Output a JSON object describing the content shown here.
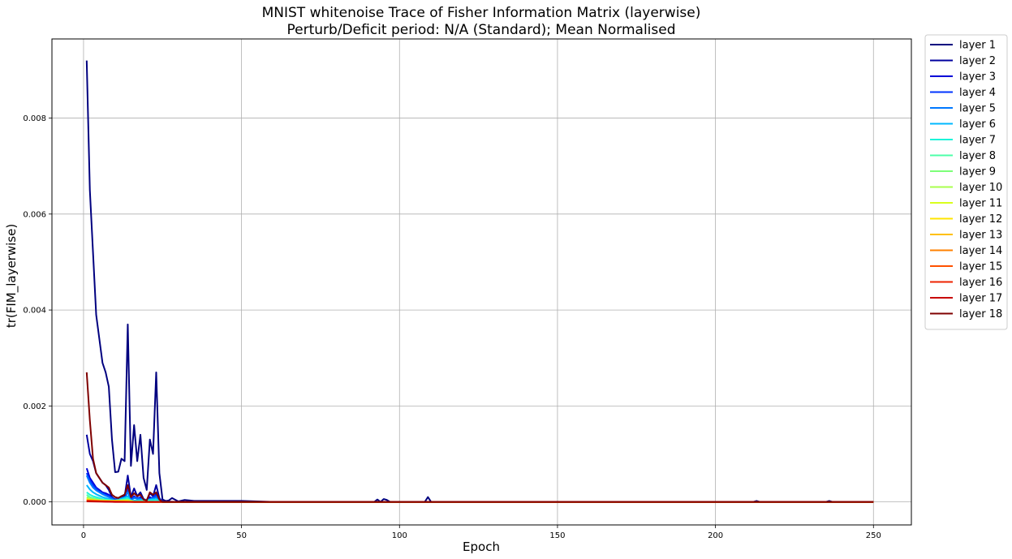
{
  "chart_data": {
    "type": "line",
    "title": "MNIST whitenoise Trace of Fisher Information Matrix (layerwise)",
    "subtitle": "Perturb/Deficit period: N/A (Standard); Mean Normalised",
    "xlabel": "Epoch",
    "ylabel": "tr(FIM_layerwise)",
    "xlim": [
      -10,
      262
    ],
    "ylim": [
      -0.00048,
      0.00965
    ],
    "xticks": [
      0,
      50,
      100,
      150,
      200,
      250
    ],
    "xtick_labels": [
      "0",
      "50",
      "100",
      "150",
      "200",
      "250"
    ],
    "yticks": [
      0,
      0.002,
      0.004,
      0.006,
      0.008
    ],
    "ytick_labels": [
      "0.000",
      "0.002",
      "0.004",
      "0.006",
      "0.008"
    ],
    "grid": true,
    "legend_position": "outside-right",
    "series": [
      {
        "name": "layer 1",
        "color": "#00007f",
        "points": [
          [
            1,
            0.0092
          ],
          [
            2,
            0.0065
          ],
          [
            3,
            0.0052
          ],
          [
            4,
            0.0039
          ],
          [
            5,
            0.0034
          ],
          [
            6,
            0.0029
          ],
          [
            7,
            0.0027
          ],
          [
            8,
            0.0024
          ],
          [
            9,
            0.0013
          ],
          [
            10,
            0.00062
          ],
          [
            11,
            0.00063
          ],
          [
            12,
            0.0009
          ],
          [
            13,
            0.00085
          ],
          [
            14,
            0.0037
          ],
          [
            15,
            0.00075
          ],
          [
            16,
            0.0016
          ],
          [
            17,
            0.00085
          ],
          [
            18,
            0.0014
          ],
          [
            19,
            0.0005
          ],
          [
            20,
            0.00025
          ],
          [
            21,
            0.0013
          ],
          [
            22,
            0.001
          ],
          [
            23,
            0.0027
          ],
          [
            24,
            0.0006
          ],
          [
            25,
            5e-05
          ],
          [
            26,
            2e-05
          ],
          [
            27,
            3e-05
          ],
          [
            28,
            8e-05
          ],
          [
            30,
            1e-05
          ],
          [
            32,
            4e-05
          ],
          [
            35,
            2e-05
          ],
          [
            42,
            2e-05
          ],
          [
            50,
            2e-05
          ],
          [
            60,
            0.0
          ],
          [
            92,
            0.0
          ],
          [
            93,
            5e-05
          ],
          [
            94,
            0.0
          ],
          [
            95,
            6e-05
          ],
          [
            96,
            4e-05
          ],
          [
            97,
            0.0
          ],
          [
            108,
            0.0
          ],
          [
            109,
            0.0001
          ],
          [
            110,
            0.0
          ],
          [
            150,
            0.0
          ],
          [
            212,
            0.0
          ],
          [
            213,
            2e-05
          ],
          [
            214,
            0.0
          ],
          [
            235,
            0.0
          ],
          [
            236,
            2e-05
          ],
          [
            237,
            0.0
          ],
          [
            250,
            0.0
          ]
        ]
      },
      {
        "name": "layer 2",
        "color": "#00009f",
        "points": [
          [
            1,
            0.0014
          ],
          [
            2,
            0.001
          ],
          [
            3,
            0.00085
          ],
          [
            4,
            0.0006
          ],
          [
            5,
            0.0005
          ],
          [
            6,
            0.0004
          ],
          [
            7,
            0.00035
          ],
          [
            8,
            0.00025
          ],
          [
            9,
            0.0001
          ],
          [
            10,
            5e-05
          ],
          [
            11,
            8e-05
          ],
          [
            12,
            0.0001
          ],
          [
            13,
            0.00011
          ],
          [
            14,
            0.00055
          ],
          [
            15,
            0.0001
          ],
          [
            16,
            0.00028
          ],
          [
            17,
            0.00012
          ],
          [
            18,
            0.0002
          ],
          [
            19,
            6e-05
          ],
          [
            20,
            3e-05
          ],
          [
            21,
            0.00018
          ],
          [
            22,
            0.00012
          ],
          [
            23,
            0.00035
          ],
          [
            24,
            8e-05
          ],
          [
            25,
            1e-05
          ],
          [
            30,
            0.0
          ],
          [
            250,
            0.0
          ]
        ]
      },
      {
        "name": "layer 3",
        "color": "#0000d7",
        "points": [
          [
            1,
            0.0007
          ],
          [
            2,
            0.0005
          ],
          [
            3,
            0.0004
          ],
          [
            4,
            0.0003
          ],
          [
            5,
            0.00025
          ],
          [
            6,
            0.0002
          ],
          [
            7,
            0.00018
          ],
          [
            8,
            0.00015
          ],
          [
            9,
            8e-05
          ],
          [
            10,
            4e-05
          ],
          [
            12,
            6e-05
          ],
          [
            13,
            6e-05
          ],
          [
            14,
            0.0003
          ],
          [
            15,
            5e-05
          ],
          [
            16,
            0.00012
          ],
          [
            17,
            6e-05
          ],
          [
            18,
            0.0001
          ],
          [
            20,
            2e-05
          ],
          [
            21,
            0.0001
          ],
          [
            22,
            6e-05
          ],
          [
            23,
            0.00018
          ],
          [
            24,
            4e-05
          ],
          [
            25,
            0.0
          ],
          [
            250,
            0.0
          ]
        ]
      },
      {
        "name": "layer 4",
        "color": "#0034ff",
        "points": [
          [
            1,
            0.0006
          ],
          [
            2,
            0.00045
          ],
          [
            3,
            0.00035
          ],
          [
            4,
            0.00028
          ],
          [
            5,
            0.00022
          ],
          [
            6,
            0.00018
          ],
          [
            7,
            0.00015
          ],
          [
            8,
            0.00012
          ],
          [
            10,
            4e-05
          ],
          [
            13,
            5e-05
          ],
          [
            14,
            0.00025
          ],
          [
            15,
            4e-05
          ],
          [
            16,
            0.0001
          ],
          [
            18,
            8e-05
          ],
          [
            20,
            2e-05
          ],
          [
            23,
            0.00014
          ],
          [
            25,
            0.0
          ],
          [
            250,
            0.0
          ]
        ]
      },
      {
        "name": "layer 5",
        "color": "#0078ff",
        "points": [
          [
            1,
            0.00055
          ],
          [
            2,
            0.0004
          ],
          [
            3,
            0.0003
          ],
          [
            4,
            0.00024
          ],
          [
            5,
            0.0002
          ],
          [
            6,
            0.00016
          ],
          [
            7,
            0.00013
          ],
          [
            8,
            0.0001
          ],
          [
            10,
            3e-05
          ],
          [
            14,
            0.0002
          ],
          [
            15,
            3e-05
          ],
          [
            16,
            8e-05
          ],
          [
            18,
            6e-05
          ],
          [
            20,
            2e-05
          ],
          [
            23,
            0.0001
          ],
          [
            25,
            0.0
          ],
          [
            250,
            0.0
          ]
        ]
      },
      {
        "name": "layer 6",
        "color": "#00b8ff",
        "points": [
          [
            1,
            0.00035
          ],
          [
            2,
            0.00026
          ],
          [
            3,
            0.0002
          ],
          [
            4,
            0.00016
          ],
          [
            5,
            0.00013
          ],
          [
            6,
            0.0001
          ],
          [
            7,
            8e-05
          ],
          [
            8,
            6e-05
          ],
          [
            10,
            2e-05
          ],
          [
            14,
            0.00012
          ],
          [
            15,
            2e-05
          ],
          [
            18,
            4e-05
          ],
          [
            23,
            6e-05
          ],
          [
            25,
            0.0
          ],
          [
            250,
            0.0
          ]
        ]
      },
      {
        "name": "layer 7",
        "color": "#1cf4d9",
        "points": [
          [
            1,
            0.0002
          ],
          [
            2,
            0.00015
          ],
          [
            3,
            0.00012
          ],
          [
            4,
            0.0001
          ],
          [
            5,
            8e-05
          ],
          [
            6,
            6e-05
          ],
          [
            8,
            4e-05
          ],
          [
            10,
            1e-05
          ],
          [
            14,
            8e-05
          ],
          [
            15,
            1e-05
          ],
          [
            23,
            4e-05
          ],
          [
            25,
            0.0
          ],
          [
            250,
            0.0
          ]
        ]
      },
      {
        "name": "layer 8",
        "color": "#4dffa9",
        "points": [
          [
            1,
            0.00015
          ],
          [
            2,
            0.0001
          ],
          [
            3,
            8e-05
          ],
          [
            5,
            5e-05
          ],
          [
            8,
            3e-05
          ],
          [
            10,
            1e-05
          ],
          [
            14,
            5e-05
          ],
          [
            16,
            1e-05
          ],
          [
            25,
            0.0
          ],
          [
            250,
            0.0
          ]
        ]
      },
      {
        "name": "layer 9",
        "color": "#7dff79",
        "points": [
          [
            1,
            0.0001
          ],
          [
            2,
            8e-05
          ],
          [
            4,
            5e-05
          ],
          [
            8,
            2e-05
          ],
          [
            14,
            4e-05
          ],
          [
            16,
            1e-05
          ],
          [
            25,
            0.0
          ],
          [
            250,
            0.0
          ]
        ]
      },
      {
        "name": "layer 10",
        "color": "#a9ff4d",
        "points": [
          [
            1,
            8e-05
          ],
          [
            3,
            5e-05
          ],
          [
            8,
            2e-05
          ],
          [
            14,
            3e-05
          ],
          [
            16,
            0.0
          ],
          [
            250,
            0.0
          ]
        ]
      },
      {
        "name": "layer 11",
        "color": "#d9ff1c",
        "points": [
          [
            1,
            6e-05
          ],
          [
            4,
            3e-05
          ],
          [
            10,
            1e-05
          ],
          [
            14,
            2e-05
          ],
          [
            16,
            0.0
          ],
          [
            250,
            0.0
          ]
        ]
      },
      {
        "name": "layer 12",
        "color": "#ffe500",
        "points": [
          [
            1,
            5e-05
          ],
          [
            5,
            2e-05
          ],
          [
            14,
            2e-05
          ],
          [
            16,
            0.0
          ],
          [
            250,
            0.0
          ]
        ]
      },
      {
        "name": "layer 13",
        "color": "#ffc000",
        "points": [
          [
            1,
            4e-05
          ],
          [
            5,
            2e-05
          ],
          [
            16,
            0.0
          ],
          [
            250,
            0.0
          ]
        ]
      },
      {
        "name": "layer 14",
        "color": "#ff8000",
        "points": [
          [
            1,
            3e-05
          ],
          [
            6,
            1e-05
          ],
          [
            16,
            0.0
          ],
          [
            250,
            0.0
          ]
        ]
      },
      {
        "name": "layer 15",
        "color": "#ff5100",
        "points": [
          [
            1,
            2e-05
          ],
          [
            8,
            1e-05
          ],
          [
            16,
            0.0
          ],
          [
            250,
            0.0
          ]
        ]
      },
      {
        "name": "layer 16",
        "color": "#ee2300",
        "points": [
          [
            1,
            2e-05
          ],
          [
            10,
            0.0
          ],
          [
            250,
            0.0
          ]
        ]
      },
      {
        "name": "layer 17",
        "color": "#c80000",
        "points": [
          [
            1,
            1e-05
          ],
          [
            10,
            0.0
          ],
          [
            250,
            0.0
          ]
        ]
      },
      {
        "name": "layer 18",
        "color": "#7f0000",
        "points": [
          [
            1,
            0.0027
          ],
          [
            2,
            0.0017
          ],
          [
            3,
            0.0009
          ],
          [
            4,
            0.0006
          ],
          [
            5,
            0.0005
          ],
          [
            6,
            0.0004
          ],
          [
            7,
            0.00035
          ],
          [
            8,
            0.0003
          ],
          [
            9,
            0.00015
          ],
          [
            10,
            0.0001
          ],
          [
            11,
            8e-05
          ],
          [
            12,
            0.00012
          ],
          [
            13,
            0.00015
          ],
          [
            14,
            0.00035
          ],
          [
            15,
            0.0001
          ],
          [
            16,
            0.00018
          ],
          [
            17,
            0.00012
          ],
          [
            18,
            0.00015
          ],
          [
            19,
            5e-05
          ],
          [
            20,
            3e-05
          ],
          [
            21,
            0.0002
          ],
          [
            22,
            0.00015
          ],
          [
            23,
            0.0002
          ],
          [
            24,
            5e-05
          ],
          [
            25,
            0.0
          ],
          [
            30,
            0.0
          ],
          [
            250,
            0.0
          ]
        ]
      }
    ]
  }
}
